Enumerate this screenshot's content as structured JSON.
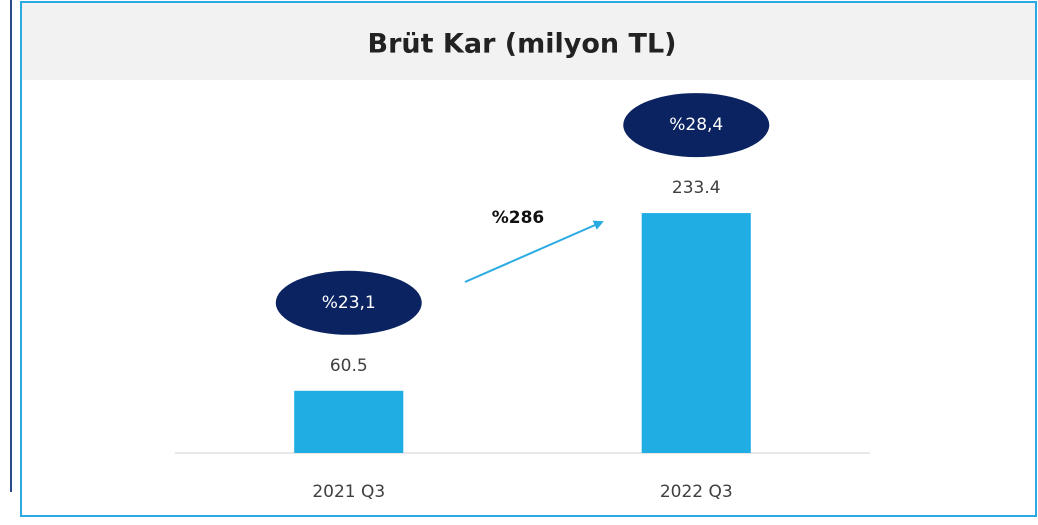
{
  "chart_data": {
    "type": "bar",
    "title": "Brüt Kar (milyon TL)",
    "categories": [
      "2021 Q3",
      "2022 Q3"
    ],
    "values": [
      60.5,
      233.4
    ],
    "color": "#1fade4",
    "ylim": [
      0,
      250
    ],
    "margin_labels": [
      "%23,1",
      "%28,4"
    ],
    "growth_label": "%286"
  }
}
